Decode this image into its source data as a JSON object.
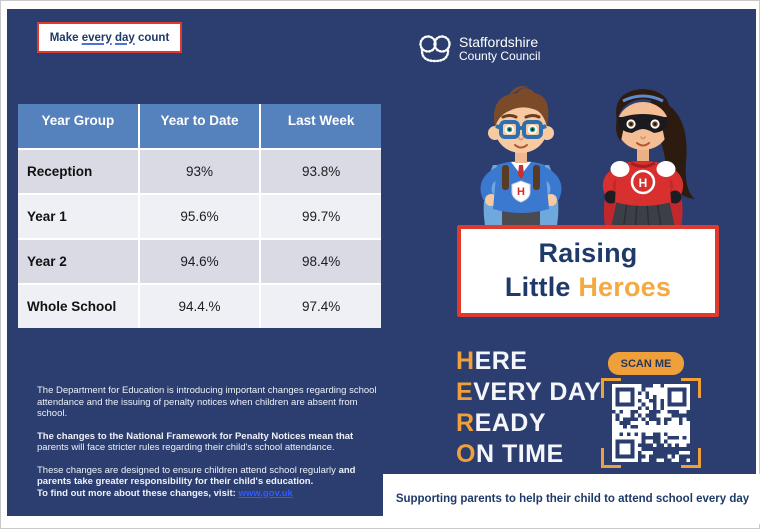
{
  "colors": {
    "navy_bg": "#2b3e6f",
    "table_header_blue": "#5581bc",
    "row_light": "#d9dae4",
    "row_lighter": "#eef0f6",
    "red_border": "#e0392e",
    "orange_accent": "#f5a942",
    "link_blue": "#2f5bff",
    "navy_text": "#1f3a68"
  },
  "banner": {
    "w1": "Make ",
    "w2": "every",
    "w3": " ",
    "w4": "day",
    "w5": " count"
  },
  "logo": {
    "line1": "Staffordshire",
    "line2": "County Council"
  },
  "table": {
    "headers": [
      "Year Group",
      "Year to Date",
      "Last Week"
    ],
    "rows": [
      {
        "label": "Reception",
        "ytd": "93%",
        "last_week": "93.8%"
      },
      {
        "label": "Year 1",
        "ytd": "95.6%",
        "last_week": "99.7%"
      },
      {
        "label": "Year 2",
        "ytd": "94.6%",
        "last_week": "98.4%"
      },
      {
        "label": "Whole School",
        "ytd": "94.4.%",
        "last_week": "97.4%"
      }
    ]
  },
  "kids": {
    "badge_letter": "H"
  },
  "raising": {
    "line1": "Raising",
    "line2_navy": "Little ",
    "line2_orange": "Heroes"
  },
  "hero": {
    "lines": [
      {
        "first": "H",
        "rest": "ERE"
      },
      {
        "first": "E",
        "rest": "VERY DAY"
      },
      {
        "first": "R",
        "rest": "EADY"
      },
      {
        "first": "O",
        "rest": "N TIME"
      }
    ]
  },
  "scan_me_label": "SCAN ME",
  "paragraphs": {
    "p1": "The Department for Education is introducing important changes regarding school attendance and the issuing of penalty notices when children are absent from school.",
    "p2_bold": "The changes to the National Framework for Penalty Notices mean that",
    "p2_rest": " parents will face stricter rules regarding their child's school attendance.",
    "p3_regular": "These changes are designed to ensure children attend school regularly ",
    "p3_bold": "and parents take greater responsibility for their child's education.",
    "p3_cta": "To find out more about these changes, visit: ",
    "p3_link": "www.gov.uk"
  },
  "footer": "Supporting parents to help their child to attend school every day"
}
